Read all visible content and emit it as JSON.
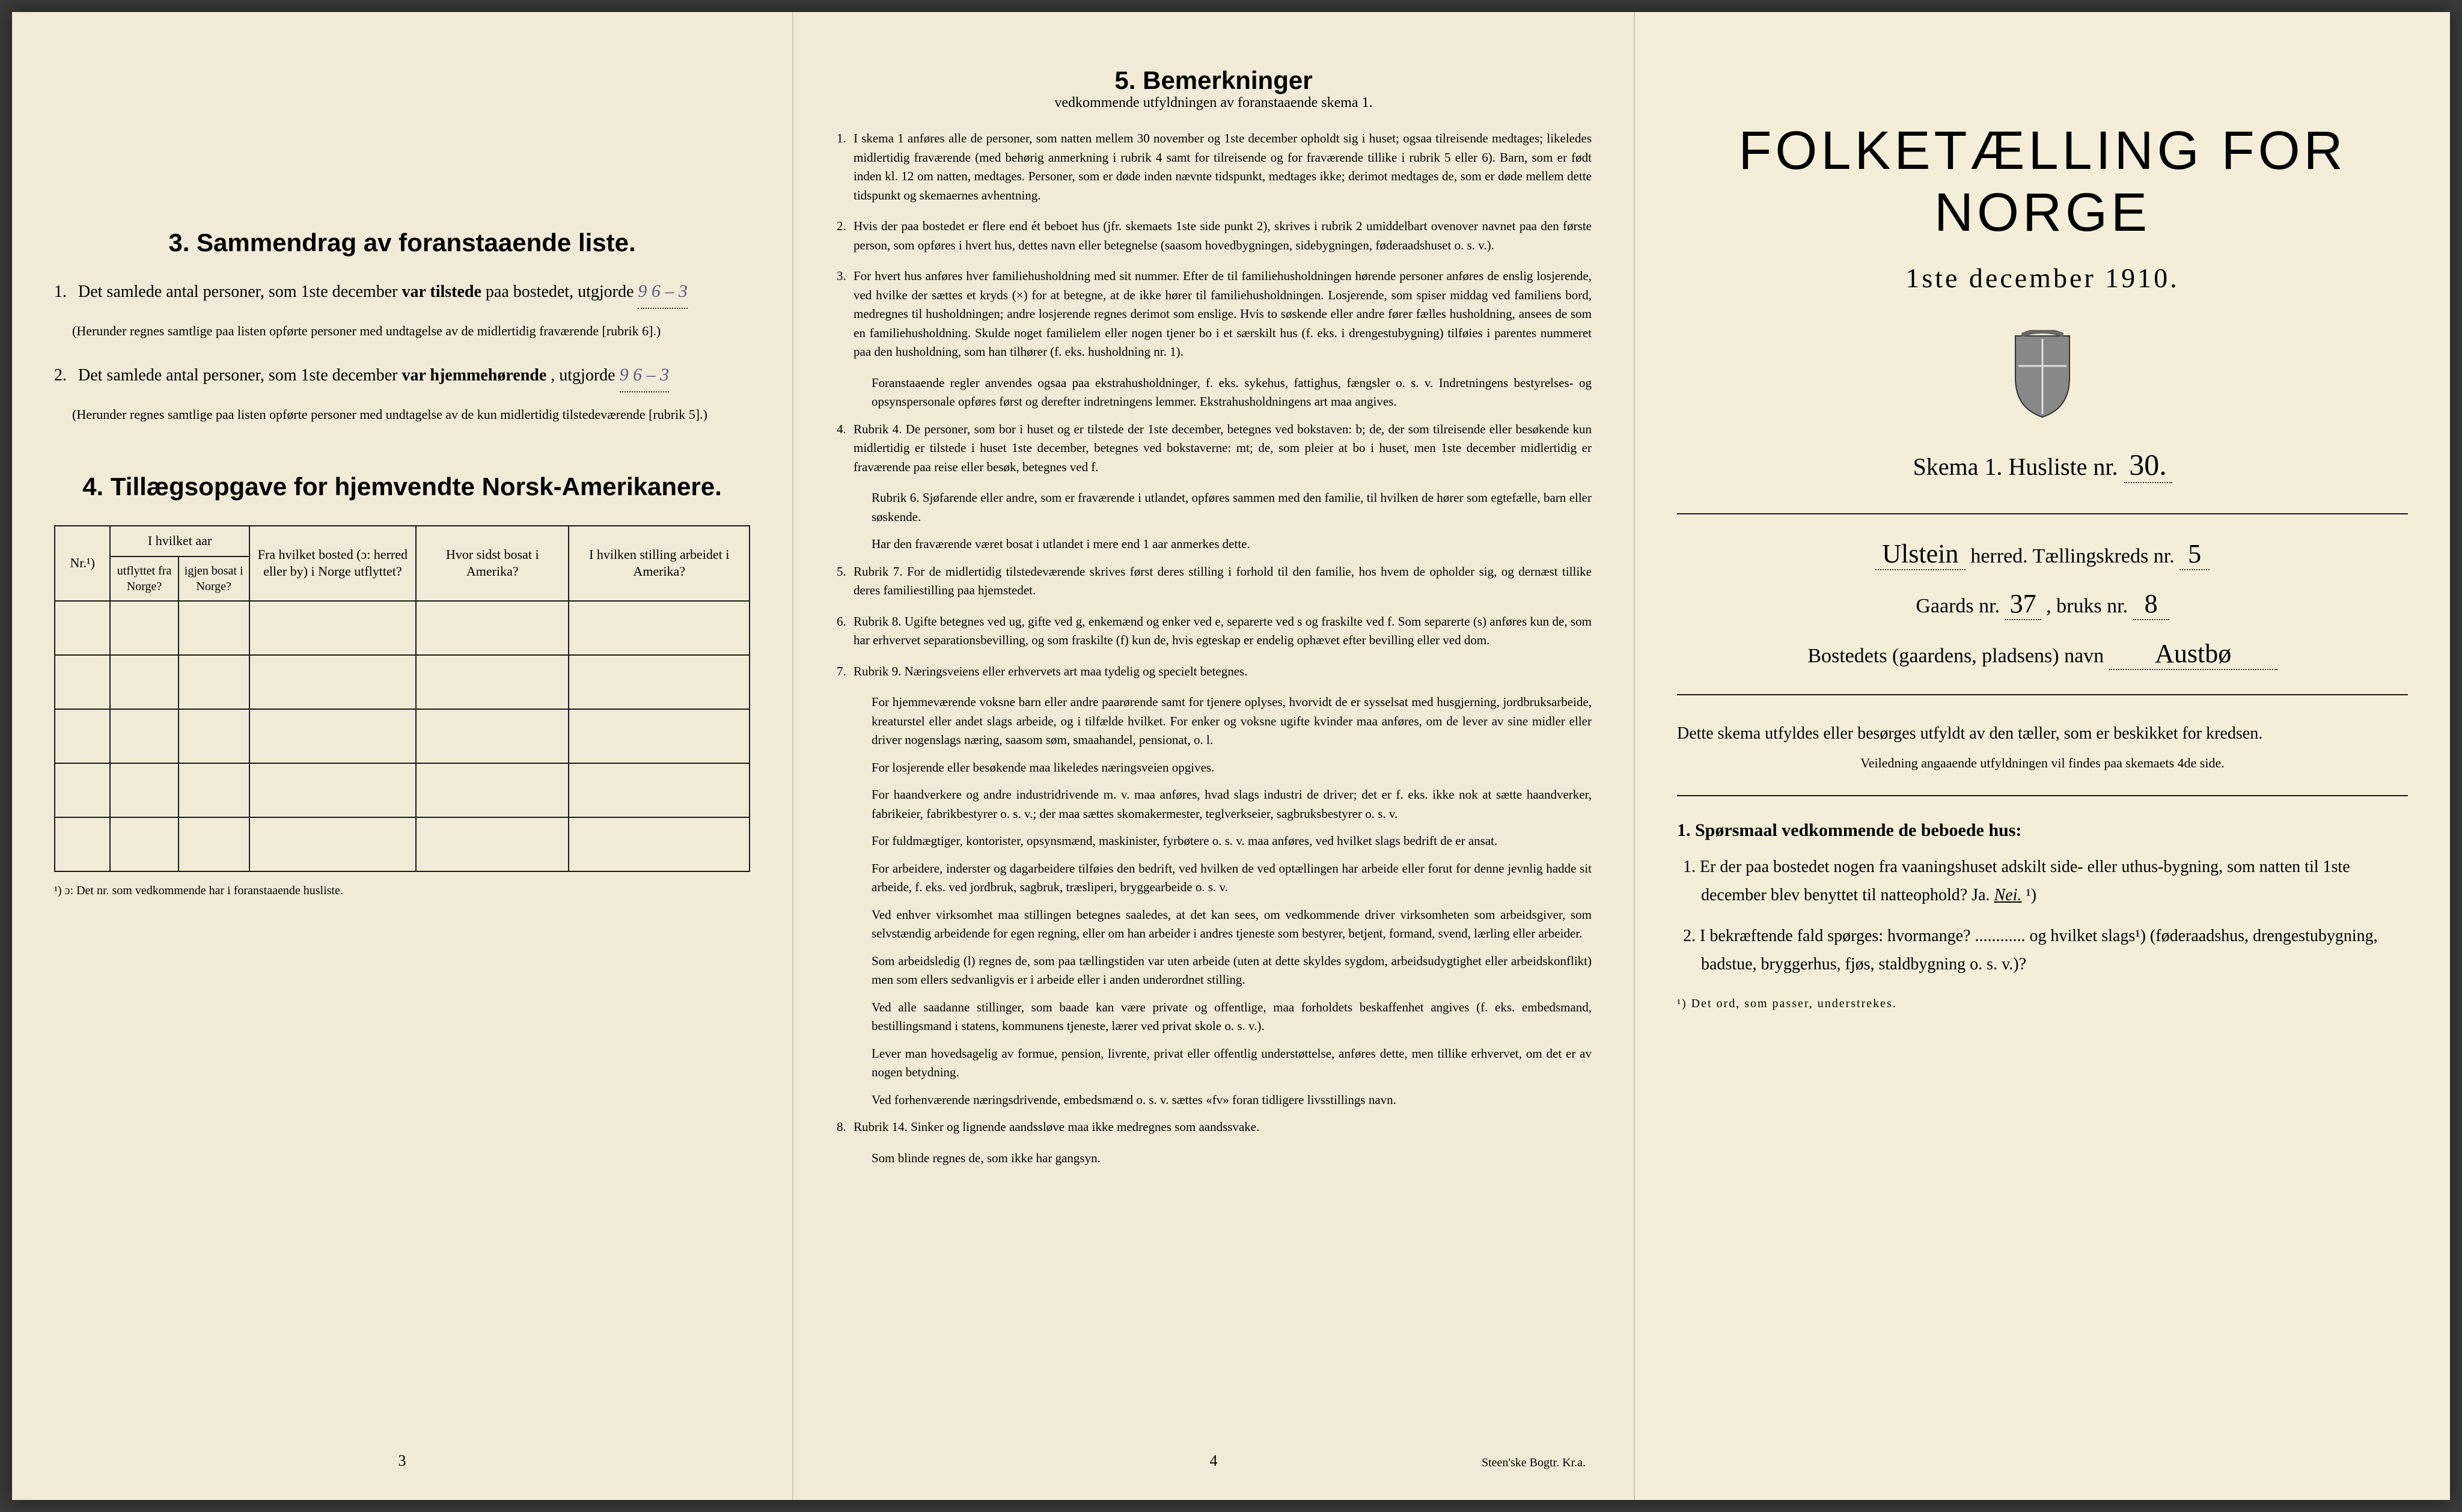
{
  "colors": {
    "paper": "#f1ead6",
    "paper_right": "#f4eed9",
    "ink": "#1a1a1a",
    "handwriting": "#5a5a8a",
    "border": "#d0c8b0",
    "background": "#3a3a3a"
  },
  "page1": {
    "section3": {
      "heading": "3.   Sammendrag av foranstaaende liste.",
      "item1": {
        "num": "1.",
        "prefix": "Det samlede antal personer, som 1ste december ",
        "bold1": "var tilstede",
        "mid": " paa bostedet, utgjorde ",
        "value": "9           6 – 3",
        "note": "(Herunder regnes samtlige paa listen opførte personer med undtagelse av de midlertidig fraværende [rubrik 6].)"
      },
      "item2": {
        "num": "2.",
        "prefix": "Det samlede antal personer, som 1ste december ",
        "bold1": "var hjemmehørende",
        "mid": ", utgjorde ",
        "value": "9           6 – 3",
        "note": "(Herunder regnes samtlige paa listen opførte personer med undtagelse av de kun midlertidig tilstedeværende [rubrik 5].)"
      }
    },
    "section4": {
      "heading": "4.   Tillægsopgave for hjemvendte Norsk-Amerikanere.",
      "headers": {
        "col1": "Nr.¹)",
        "group1": "I hvilket aar",
        "col2a": "utflyttet fra Norge?",
        "col2b": "igjen bosat i Norge?",
        "col3": "Fra hvilket bosted (ɔ: herred eller by) i Norge utflyttet?",
        "col4": "Hvor sidst bosat i Amerika?",
        "col5": "I hvilken stilling arbeidet i Amerika?"
      },
      "rows": 5,
      "footnote": "¹) ɔ: Det nr. som vedkommende har i foranstaaende husliste."
    },
    "page_num": "3"
  },
  "page2": {
    "heading": "5.   Bemerkninger",
    "subheading": "vedkommende utfyldningen av foranstaaende skema 1.",
    "items": [
      {
        "num": "1.",
        "text": "I skema 1 anføres alle de personer, som natten mellem 30 november og 1ste december opholdt sig i huset; ogsaa tilreisende medtages; likeledes midlertidig fraværende (med behørig anmerkning i rubrik 4 samt for tilreisende og for fraværende tillike i rubrik 5 eller 6). Barn, som er født inden kl. 12 om natten, medtages. Personer, som er døde inden nævnte tidspunkt, medtages ikke; derimot medtages de, som er døde mellem dette tidspunkt og skemaernes avhentning."
      },
      {
        "num": "2.",
        "text": "Hvis der paa bostedet er flere end ét beboet hus (jfr. skemaets 1ste side punkt 2), skrives i rubrik 2 umiddelbart ovenover navnet paa den første person, som opføres i hvert hus, dettes navn eller betegnelse (saasom hovedbygningen, sidebygningen, føderaadshuset o. s. v.)."
      },
      {
        "num": "3.",
        "text": "For hvert hus anføres hver familiehusholdning med sit nummer. Efter de til familiehusholdningen hørende personer anføres de enslig losjerende, ved hvilke der sættes et kryds (×) for at betegne, at de ikke hører til familiehusholdningen. Losjerende, som spiser middag ved familiens bord, medregnes til husholdningen; andre losjerende regnes derimot som enslige. Hvis to søskende eller andre fører fælles husholdning, ansees de som en familiehusholdning. Skulde noget familielem eller nogen tjener bo i et særskilt hus (f. eks. i drengestubygning) tilføies i parentes nummeret paa den husholdning, som han tilhører (f. eks. husholdning nr. 1).",
        "subs": [
          "Foranstaaende regler anvendes ogsaa paa ekstrahusholdninger, f. eks. sykehus, fattighus, fængsler o. s. v. Indretningens bestyrelses- og opsynspersonale opføres først og derefter indretningens lemmer. Ekstrahusholdningens art maa angives."
        ]
      },
      {
        "num": "4.",
        "text": "Rubrik 4. De personer, som bor i huset og er tilstede der 1ste december, betegnes ved bokstaven: b; de, der som tilreisende eller besøkende kun midlertidig er tilstede i huset 1ste december, betegnes ved bokstaverne: mt; de, som pleier at bo i huset, men 1ste december midlertidig er fraværende paa reise eller besøk, betegnes ved f.",
        "subs": [
          "Rubrik 6. Sjøfarende eller andre, som er fraværende i utlandet, opføres sammen med den familie, til hvilken de hører som egtefælle, barn eller søskende.",
          "Har den fraværende været bosat i utlandet i mere end 1 aar anmerkes dette."
        ]
      },
      {
        "num": "5.",
        "text": "Rubrik 7. For de midlertidig tilstedeværende skrives først deres stilling i forhold til den familie, hos hvem de opholder sig, og dernæst tillike deres familiestilling paa hjemstedet."
      },
      {
        "num": "6.",
        "text": "Rubrik 8. Ugifte betegnes ved ug, gifte ved g, enkemænd og enker ved e, separerte ved s og fraskilte ved f. Som separerte (s) anføres kun de, som har erhvervet separationsbevilling, og som fraskilte (f) kun de, hvis egteskap er endelig ophævet efter bevilling eller ved dom."
      },
      {
        "num": "7.",
        "text": "Rubrik 9. Næringsveiens eller erhvervets art maa tydelig og specielt betegnes.",
        "subs": [
          "For hjemmeværende voksne barn eller andre paarørende samt for tjenere oplyses, hvorvidt de er sysselsat med husgjerning, jordbruksarbeide, kreaturstel eller andet slags arbeide, og i tilfælde hvilket. For enker og voksne ugifte kvinder maa anføres, om de lever av sine midler eller driver nogenslags næring, saasom søm, smaahandel, pensionat, o. l.",
          "For losjerende eller besøkende maa likeledes næringsveien opgives.",
          "For haandverkere og andre industridrivende m. v. maa anføres, hvad slags industri de driver; det er f. eks. ikke nok at sætte haandverker, fabrikeier, fabrikbestyrer o. s. v.; der maa sættes skomakermester, teglverkseier, sagbruksbestyrer o. s. v.",
          "For fuldmægtiger, kontorister, opsynsmænd, maskinister, fyrbøtere o. s. v. maa anføres, ved hvilket slags bedrift de er ansat.",
          "For arbeidere, inderster og dagarbeidere tilføies den bedrift, ved hvilken de ved optællingen har arbeide eller forut for denne jevnlig hadde sit arbeide, f. eks. ved jordbruk, sagbruk, træsliperi, bryggearbeide o. s. v.",
          "Ved enhver virksomhet maa stillingen betegnes saaledes, at det kan sees, om vedkommende driver virksomheten som arbeidsgiver, som selvstændig arbeidende for egen regning, eller om han arbeider i andres tjeneste som bestyrer, betjent, formand, svend, lærling eller arbeider.",
          "Som arbeidsledig (l) regnes de, som paa tællingstiden var uten arbeide (uten at dette skyldes sygdom, arbeidsudygtighet eller arbeidskonflikt) men som ellers sedvanligvis er i arbeide eller i anden underordnet stilling.",
          "Ved alle saadanne stillinger, som baade kan være private og offentlige, maa forholdets beskaffenhet angives (f. eks. embedsmand, bestillingsmand i statens, kommunens tjeneste, lærer ved privat skole o. s. v.).",
          "Lever man hovedsagelig av formue, pension, livrente, privat eller offentlig understøttelse, anføres dette, men tillike erhvervet, om det er av nogen betydning.",
          "Ved forhenværende næringsdrivende, embedsmænd o. s. v. sættes «fv» foran tidligere livsstillings navn."
        ]
      },
      {
        "num": "8.",
        "text": "Rubrik 14. Sinker og lignende aandssløve maa ikke medregnes som aandssvake.",
        "subs": [
          "Som blinde regnes de, som ikke har gangsyn."
        ]
      }
    ],
    "page_num": "4",
    "printmark": "Steen'ske Bogtr.  Kr.a."
  },
  "page3": {
    "title": "FOLKETÆLLING FOR NORGE",
    "subtitle": "1ste december 1910.",
    "skema": {
      "label": "Skema 1.   Husliste nr.",
      "value": "30."
    },
    "herred": {
      "value": "Ulstein",
      "suffix": "herred.   Tællingskreds nr.",
      "kreds": "5"
    },
    "gaards": {
      "label": "Gaards nr.",
      "value": "37",
      "bruks_label": ", bruks nr.",
      "bruks": "8"
    },
    "bosted": {
      "label": "Bostedets (gaardens, pladsens) navn",
      "value": "Austbø"
    },
    "note": "Dette skema utfyldes eller besørges utfyldt av den tæller, som er beskikket for kredsen.",
    "note_small": "Veiledning angaaende utfyldningen vil findes paa skemaets 4de side.",
    "q_heading": "1. Spørsmaal vedkommende de beboede hus:",
    "q1": {
      "num": "1.",
      "text": "Er der paa bostedet nogen fra vaaningshuset adskilt side- eller uthus-bygning, som natten til 1ste december blev benyttet til natteophold?    Ja.    ",
      "answer": "Nei.",
      "suffix": "¹)"
    },
    "q2": {
      "num": "2.",
      "text": "I bekræftende fald spørges: hvormange? ............ og hvilket slags¹) (føderaadshus, drengestubygning, badstue, bryggerhus, fjøs, staldbygning o. s. v.)?"
    },
    "footnote": "¹) Det ord, som passer, understrekes."
  }
}
